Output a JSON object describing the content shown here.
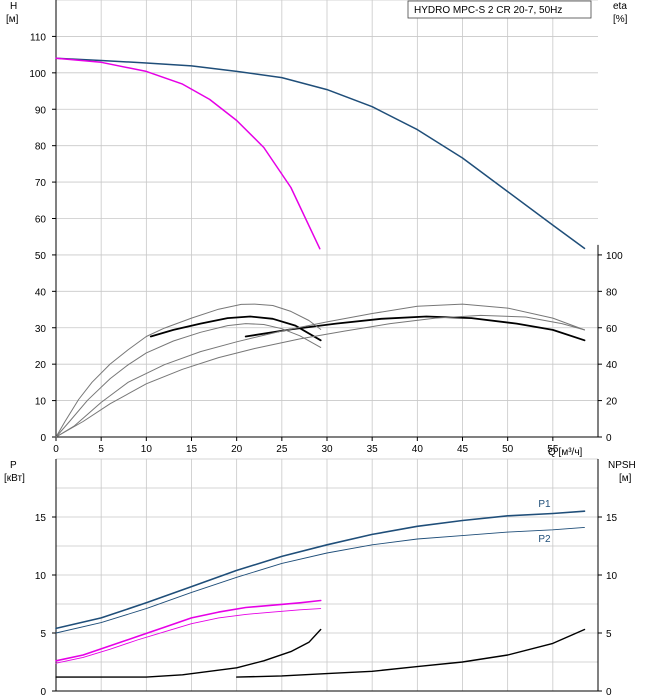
{
  "chart_data": [
    {
      "type": "line",
      "title": "HYDRO MPC-S 2 CR 20-7, 50Hz",
      "xlabel": "Q [м³/ч]",
      "ylabel_left": "H [м]",
      "ylabel_left_name": "H",
      "ylabel_left_unit": "[м]",
      "ylabel_right_name": "eta",
      "ylabel_right_unit": "[%]",
      "xlim": [
        0,
        60
      ],
      "ylim_left": [
        0,
        120
      ],
      "ylim_right": [
        0,
        240
      ],
      "x_ticks": [
        0,
        5,
        10,
        15,
        20,
        25,
        30,
        35,
        40,
        45,
        50,
        55
      ],
      "y_ticks_left": [
        0,
        10,
        20,
        30,
        40,
        50,
        60,
        70,
        80,
        90,
        100,
        110
      ],
      "y_ticks_right": [
        0,
        20,
        40,
        60,
        80,
        100
      ],
      "grid": true,
      "colors": {
        "head_two_pumps": "#1f4e79",
        "head_one_pump": "#e600e6",
        "efficiency": "#000000",
        "efficiency_thin": "#777777",
        "grid": "#c8c8c8"
      },
      "series": [
        {
          "axis": "left",
          "color": "#1f4e79",
          "width": 1.5,
          "points": [
            [
              0,
              104
            ],
            [
              5,
              103.4
            ],
            [
              10,
              102.7
            ],
            [
              15,
              101.9
            ],
            [
              20,
              100.4
            ],
            [
              25,
              98.7
            ],
            [
              30,
              95.4
            ],
            [
              35,
              90.7
            ],
            [
              40,
              84.4
            ],
            [
              45,
              76.6
            ],
            [
              50,
              67.4
            ],
            [
              55,
              58.2
            ],
            [
              58.5,
              51.8
            ]
          ]
        },
        {
          "axis": "left",
          "color": "#e600e6",
          "width": 1.5,
          "points": [
            [
              0,
              104
            ],
            [
              5,
              102.9
            ],
            [
              10,
              100.4
            ],
            [
              14,
              96.9
            ],
            [
              17,
              92.7
            ],
            [
              20,
              86.9
            ],
            [
              23,
              79.5
            ],
            [
              26,
              68.5
            ],
            [
              29.2,
              51.7
            ]
          ]
        },
        {
          "axis": "right",
          "color": "#000000",
          "width": 1.8,
          "points": [
            [
              10.5,
              55.2
            ],
            [
              13,
              58.8
            ],
            [
              16,
              62.3
            ],
            [
              19,
              65.3
            ],
            [
              21.5,
              66.2
            ],
            [
              24,
              64.9
            ],
            [
              26.5,
              61.2
            ],
            [
              29.3,
              53.1
            ]
          ]
        },
        {
          "axis": "right",
          "color": "#000000",
          "width": 1.8,
          "points": [
            [
              21,
              55.2
            ],
            [
              26,
              59.1
            ],
            [
              31,
              62.3
            ],
            [
              36,
              64.9
            ],
            [
              41,
              66.2
            ],
            [
              46,
              65.3
            ],
            [
              51,
              62.3
            ],
            [
              55,
              58.8
            ],
            [
              58.5,
              53.1
            ]
          ]
        },
        {
          "axis": "right",
          "color": "#777777",
          "width": 1,
          "points": [
            [
              0,
              0
            ],
            [
              1,
              8.5
            ],
            [
              2.5,
              20.6
            ],
            [
              4,
              30.1
            ],
            [
              6,
              40.1
            ],
            [
              8,
              48.0
            ],
            [
              10,
              55.2
            ],
            [
              12,
              59.8
            ],
            [
              15,
              65.3
            ],
            [
              18,
              70.2
            ],
            [
              20.5,
              72.8
            ],
            [
              22,
              73.0
            ],
            [
              24,
              72.2
            ],
            [
              26,
              69.0
            ],
            [
              28,
              64.0
            ],
            [
              29.3,
              59.1
            ]
          ]
        },
        {
          "axis": "right",
          "color": "#777777",
          "width": 1,
          "points": [
            [
              0,
              0
            ],
            [
              2,
              6
            ],
            [
              5,
              19
            ],
            [
              8,
              30.1
            ],
            [
              12,
              39.7
            ],
            [
              16,
              46.9
            ],
            [
              20,
              52.3
            ],
            [
              25,
              58.2
            ],
            [
              30,
              63.2
            ],
            [
              35,
              67.8
            ],
            [
              40,
              71.8
            ],
            [
              45,
              73.0
            ],
            [
              50,
              70.8
            ],
            [
              55,
              65.3
            ],
            [
              58.5,
              58.8
            ]
          ]
        },
        {
          "axis": "right",
          "color": "#777777",
          "width": 1,
          "points": [
            [
              0,
              0
            ],
            [
              1.5,
              8.5
            ],
            [
              3.5,
              20.2
            ],
            [
              6,
              32.1
            ],
            [
              8,
              39.7
            ],
            [
              10,
              46.2
            ],
            [
              13,
              52.7
            ],
            [
              16,
              57.5
            ],
            [
              19,
              61.2
            ],
            [
              21,
              62.3
            ],
            [
              23,
              61.8
            ],
            [
              25,
              59.5
            ],
            [
              27,
              55.6
            ],
            [
              29.3,
              49.2
            ]
          ]
        },
        {
          "axis": "right",
          "color": "#777777",
          "width": 1,
          "points": [
            [
              0,
              0
            ],
            [
              3,
              8.5
            ],
            [
              6,
              18.3
            ],
            [
              10,
              29.2
            ],
            [
              14,
              37.2
            ],
            [
              18,
              43.6
            ],
            [
              22,
              48.6
            ],
            [
              27,
              53.9
            ],
            [
              32,
              58.2
            ],
            [
              37,
              62.3
            ],
            [
              42,
              65.3
            ],
            [
              47,
              66.8
            ],
            [
              52,
              65.9
            ],
            [
              56,
              62.3
            ],
            [
              58.5,
              58.8
            ]
          ]
        }
      ]
    },
    {
      "type": "line",
      "xlim": [
        0,
        60
      ],
      "ylabel_left_name": "P",
      "ylabel_left_unit": "[кВт]",
      "ylabel_right_name": "NPSH",
      "ylabel_right_unit": "[м]",
      "ylim_left": [
        0,
        20
      ],
      "ylim_right": [
        0,
        20
      ],
      "y_ticks_left": [
        0,
        5,
        10,
        15
      ],
      "y_ticks_right": [
        0,
        5,
        10,
        15
      ],
      "grid": true,
      "series": [
        {
          "name": "P1",
          "axis": "left",
          "color": "#1f4e79",
          "width": 1.6,
          "points": [
            [
              0,
              5.4
            ],
            [
              5,
              6.3
            ],
            [
              10,
              7.6
            ],
            [
              15,
              9.0
            ],
            [
              20,
              10.4
            ],
            [
              25,
              11.6
            ],
            [
              30,
              12.6
            ],
            [
              35,
              13.5
            ],
            [
              40,
              14.2
            ],
            [
              45,
              14.7
            ],
            [
              50,
              15.1
            ],
            [
              55,
              15.3
            ],
            [
              58.5,
              15.5
            ]
          ]
        },
        {
          "name": "P2",
          "axis": "left",
          "color": "#1f4e79",
          "width": 0.9,
          "points": [
            [
              0,
              5.0
            ],
            [
              5,
              5.9
            ],
            [
              10,
              7.1
            ],
            [
              15,
              8.5
            ],
            [
              20,
              9.8
            ],
            [
              25,
              11.0
            ],
            [
              30,
              11.9
            ],
            [
              35,
              12.6
            ],
            [
              40,
              13.1
            ],
            [
              45,
              13.4
            ],
            [
              50,
              13.7
            ],
            [
              55,
              13.9
            ],
            [
              58.5,
              14.1
            ]
          ]
        },
        {
          "axis": "left",
          "color": "#e600e6",
          "width": 1.6,
          "points": [
            [
              0,
              2.6
            ],
            [
              3,
              3.1
            ],
            [
              6,
              3.9
            ],
            [
              9,
              4.7
            ],
            [
              12,
              5.5
            ],
            [
              15,
              6.3
            ],
            [
              18,
              6.8
            ],
            [
              21,
              7.2
            ],
            [
              24,
              7.4
            ],
            [
              27,
              7.6
            ],
            [
              29.3,
              7.8
            ]
          ]
        },
        {
          "axis": "left",
          "color": "#e600e6",
          "width": 0.9,
          "points": [
            [
              0,
              2.4
            ],
            [
              3,
              2.9
            ],
            [
              6,
              3.6
            ],
            [
              9,
              4.4
            ],
            [
              12,
              5.1
            ],
            [
              15,
              5.8
            ],
            [
              18,
              6.3
            ],
            [
              21,
              6.6
            ],
            [
              24,
              6.8
            ],
            [
              27,
              7.0
            ],
            [
              29.3,
              7.1
            ]
          ]
        },
        {
          "axis": "right",
          "color": "#000000",
          "width": 1.4,
          "points": [
            [
              0,
              1.2
            ],
            [
              5,
              1.2
            ],
            [
              10,
              1.2
            ],
            [
              14,
              1.4
            ],
            [
              17,
              1.7
            ],
            [
              20,
              2.0
            ],
            [
              23,
              2.6
            ],
            [
              26,
              3.4
            ],
            [
              28,
              4.2
            ],
            [
              29.3,
              5.3
            ]
          ]
        },
        {
          "axis": "right",
          "color": "#000000",
          "width": 1.4,
          "points": [
            [
              20,
              1.2
            ],
            [
              25,
              1.3
            ],
            [
              30,
              1.5
            ],
            [
              35,
              1.7
            ],
            [
              40,
              2.1
            ],
            [
              45,
              2.5
            ],
            [
              50,
              3.1
            ],
            [
              55,
              4.1
            ],
            [
              58.5,
              5.3
            ]
          ]
        }
      ],
      "annotations": [
        {
          "text": "P1",
          "x": 56.5,
          "y": 16.2,
          "axis": "left"
        },
        {
          "text": "P2",
          "x": 56.5,
          "y": 13.2,
          "axis": "left"
        }
      ]
    }
  ]
}
